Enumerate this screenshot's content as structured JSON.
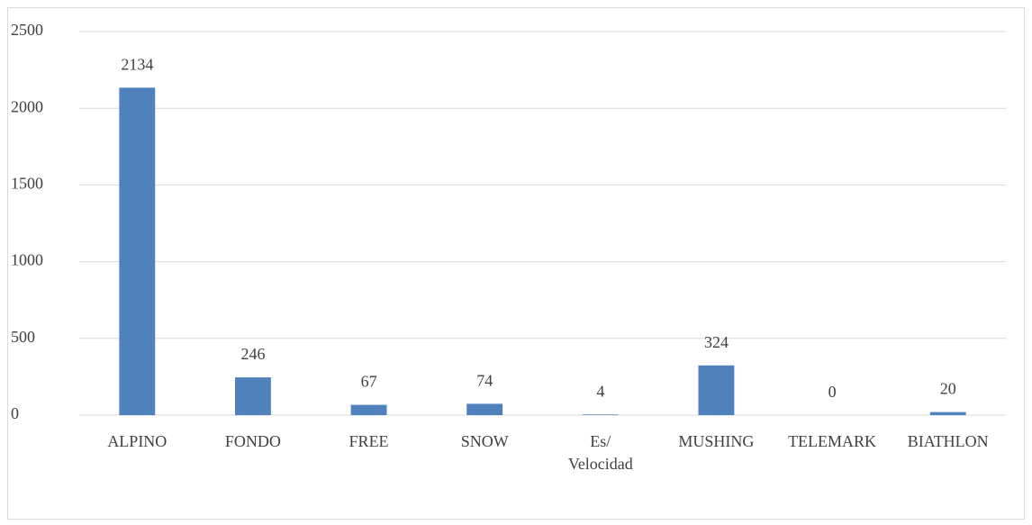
{
  "chart_data": {
    "type": "bar",
    "categories": [
      "ALPINO",
      "FONDO",
      "FREE",
      "SNOW",
      "Es/\nVelocidad",
      "MUSHING",
      "TELEMARK",
      "BIATHLON"
    ],
    "values": [
      2134,
      246,
      67,
      74,
      4,
      324,
      0,
      20
    ],
    "color": "#4f81bd",
    "ylim": [
      0,
      2500
    ],
    "yticks": [
      0,
      500,
      1000,
      1500,
      2000,
      2500
    ],
    "grid": true
  }
}
